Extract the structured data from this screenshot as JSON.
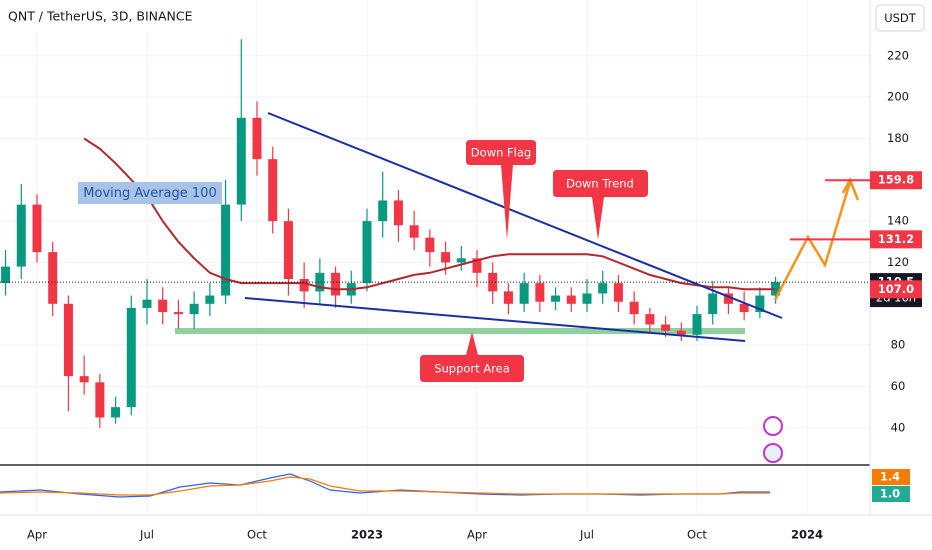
{
  "chart_data": {
    "type": "candlestick",
    "title": "QNT / TetherUS, 3D, BINANCE",
    "currency": "USDT",
    "categories": [
      null,
      null,
      "Apr",
      null,
      null,
      null,
      null,
      null,
      null,
      "Jul",
      null,
      null,
      null,
      null,
      null,
      null,
      "Oct",
      null,
      null,
      null,
      null,
      null,
      null,
      "2023",
      null,
      null,
      null,
      null,
      null,
      null,
      "Apr",
      null,
      null,
      null,
      null,
      null,
      null,
      "Jul",
      null,
      null,
      null,
      null,
      null,
      null,
      "Oct",
      null,
      null,
      null,
      null,
      null,
      null,
      "2024",
      null,
      null,
      null,
      null
    ],
    "open": [
      110,
      118,
      148,
      125,
      100,
      65,
      62,
      45,
      50,
      98,
      102,
      96,
      95,
      100,
      104,
      148,
      190,
      170,
      140,
      112,
      106,
      115,
      104,
      110,
      140,
      150,
      138,
      132,
      125,
      120,
      122,
      115,
      106,
      100,
      110,
      101,
      104,
      100,
      105,
      110,
      101,
      95,
      90,
      87,
      85,
      95,
      105,
      100,
      96,
      104,
      null,
      null,
      null,
      null,
      null,
      null
    ],
    "high": [
      126,
      158,
      153,
      130,
      104,
      75,
      66,
      55,
      104,
      112,
      108,
      102,
      106,
      110,
      160,
      228,
      198,
      176,
      146,
      120,
      122,
      118,
      116,
      146,
      164,
      155,
      145,
      136,
      130,
      128,
      126,
      120,
      110,
      115,
      114,
      108,
      108,
      112,
      116,
      114,
      106,
      98,
      94,
      91,
      99,
      111,
      108,
      106,
      108,
      113,
      null,
      null,
      null,
      null,
      null,
      null
    ],
    "low": [
      104,
      112,
      120,
      94,
      48,
      56,
      40,
      42,
      46,
      90,
      90,
      88,
      88,
      94,
      100,
      140,
      162,
      134,
      104,
      98,
      100,
      98,
      100,
      106,
      132,
      130,
      126,
      118,
      114,
      116,
      108,
      100,
      95,
      96,
      96,
      97,
      96,
      96,
      100,
      96,
      90,
      86,
      84,
      82,
      82,
      90,
      95,
      92,
      93,
      100,
      null,
      null,
      null,
      null,
      null,
      null
    ],
    "close": [
      118,
      148,
      125,
      100,
      65,
      62,
      45,
      50,
      98,
      102,
      96,
      95,
      100,
      104,
      148,
      190,
      170,
      140,
      112,
      106,
      115,
      104,
      110,
      140,
      150,
      138,
      132,
      125,
      120,
      122,
      115,
      106,
      100,
      110,
      101,
      104,
      100,
      105,
      110,
      101,
      95,
      90,
      87,
      85,
      95,
      105,
      100,
      96,
      104,
      110.5,
      null,
      null,
      null,
      null,
      null,
      null
    ],
    "up_color": "#089981",
    "down_color": "#f23645",
    "series": [
      {
        "name": "Moving Average 100",
        "color": "#b2262f",
        "values": [
          null,
          null,
          null,
          null,
          null,
          180,
          175,
          168,
          160,
          152,
          140,
          130,
          122,
          115,
          112,
          110,
          110,
          110,
          110,
          110,
          108,
          107,
          107,
          108,
          110,
          112,
          114,
          115,
          117,
          119,
          121,
          123,
          124,
          124,
          124,
          124,
          124,
          124,
          123,
          120,
          117,
          114,
          112,
          110,
          109,
          108,
          108,
          107,
          107,
          107,
          null,
          null,
          null,
          null,
          null,
          null
        ]
      }
    ],
    "ylim": [
      22,
      247
    ],
    "yticks": [
      40,
      60,
      80,
      120,
      140,
      180,
      200,
      220
    ],
    "price_tags": [
      {
        "value": 110.5,
        "label": "110.5",
        "color": "#131722"
      },
      {
        "value": 107,
        "label": "107.0",
        "color": "#f23645"
      },
      {
        "value": 131.2,
        "label": "131.2",
        "color": "#f23645"
      },
      {
        "value": 159.8,
        "label": "159.8",
        "color": "#f23645"
      }
    ],
    "countdown": "2d 16h",
    "annotations": [
      "Down Flag",
      "Down Trend",
      "Support Area"
    ],
    "indicator_tags": [
      {
        "value": 1.4,
        "label": "1.4",
        "color": "#f57c00"
      },
      {
        "value": 1.0,
        "label": "1.0",
        "color": "#22ab94"
      }
    ]
  }
}
